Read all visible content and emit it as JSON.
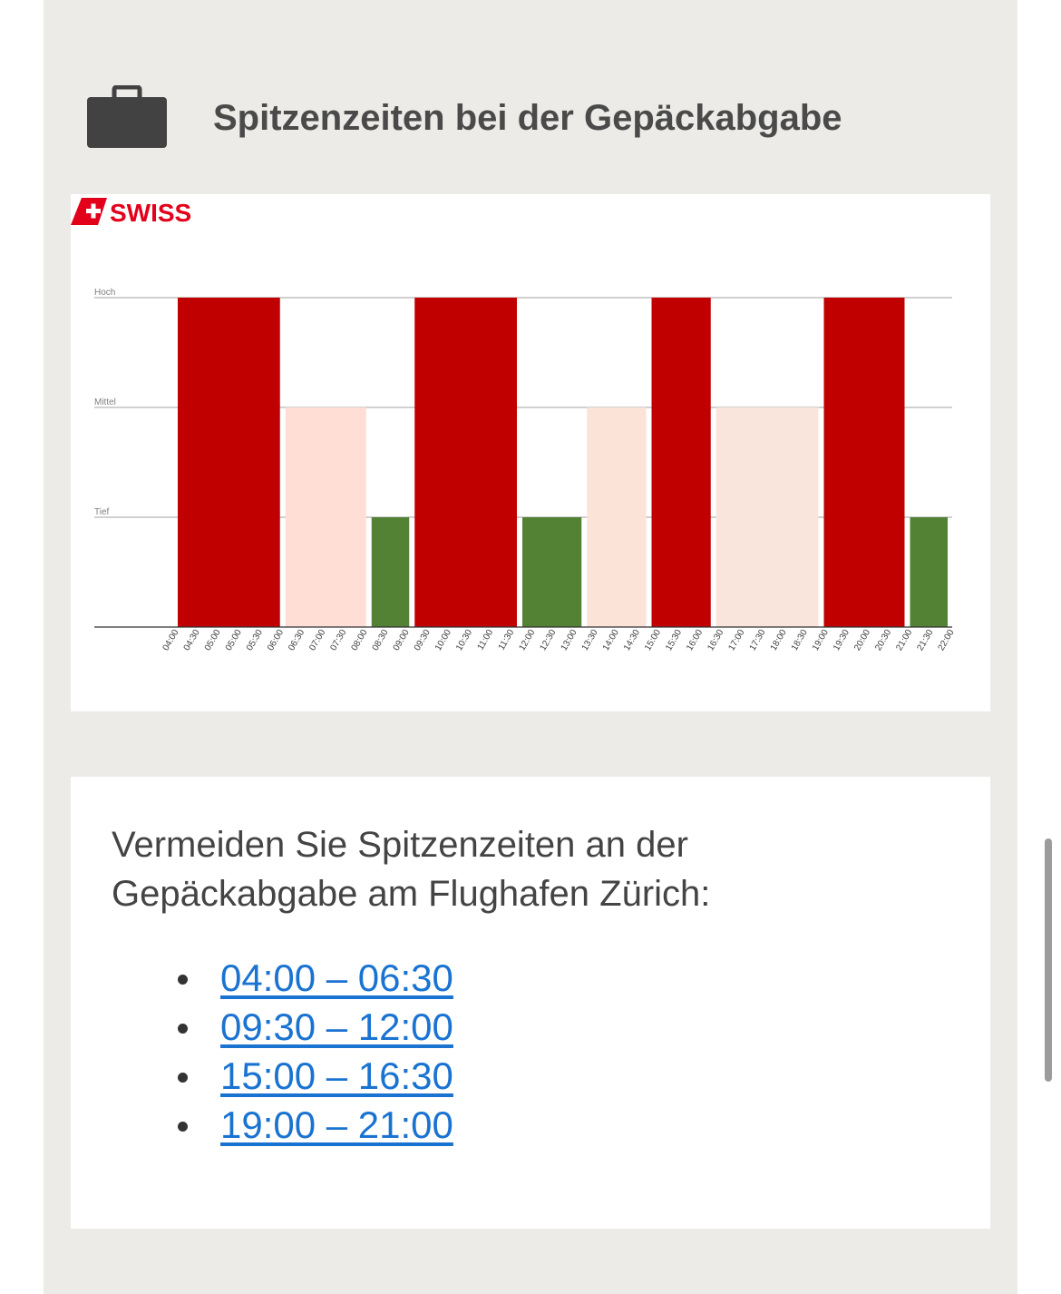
{
  "section": {
    "title": "Spitzenzeiten bei der Gepäckabgabe",
    "icon": "briefcase-icon"
  },
  "chart_data": {
    "type": "bar",
    "title": "",
    "xlabel": "",
    "ylabel": "",
    "y_levels": [
      "Tief",
      "Mittel",
      "Hoch"
    ],
    "ylim": [
      0,
      3
    ],
    "grid": true,
    "x_ticks": [
      "04:00",
      "04:30",
      "05:00",
      "05:00",
      "05:30",
      "06:00",
      "06:30",
      "07:00",
      "07:30",
      "08:00",
      "08:30",
      "09:00",
      "09:30",
      "10:00",
      "10:30",
      "11:00",
      "11:30",
      "12:00",
      "12:30",
      "13:00",
      "13:30",
      "14:00",
      "14:30",
      "15:00",
      "15:30",
      "16:00",
      "16:30",
      "17:00",
      "17:30",
      "18:00",
      "18:30",
      "19:00",
      "19:30",
      "20:00",
      "20:30",
      "21:00",
      "21:30",
      "22:00"
    ],
    "bars": [
      {
        "start": "04:00",
        "end": "06:30",
        "level": "Hoch",
        "value": 3,
        "color": "#c00000"
      },
      {
        "start": "06:30",
        "end": "08:30",
        "level": "Mittel",
        "value": 2,
        "color": "#ffded6"
      },
      {
        "start": "08:30",
        "end": "09:30",
        "level": "Tief",
        "value": 1,
        "color": "#548235"
      },
      {
        "start": "09:30",
        "end": "12:00",
        "level": "Hoch",
        "value": 3,
        "color": "#c00000"
      },
      {
        "start": "12:00",
        "end": "13:30",
        "level": "Tief",
        "value": 1,
        "color": "#548235"
      },
      {
        "start": "13:30",
        "end": "15:00",
        "level": "Mittel",
        "value": 2,
        "color": "#fbe3d8"
      },
      {
        "start": "15:00",
        "end": "16:30",
        "level": "Hoch",
        "value": 3,
        "color": "#c00000"
      },
      {
        "start": "16:30",
        "end": "19:00",
        "level": "Mittel",
        "value": 2,
        "color": "#f9e5db"
      },
      {
        "start": "19:00",
        "end": "21:00",
        "level": "Hoch",
        "value": 3,
        "color": "#c00000"
      },
      {
        "start": "21:00",
        "end": "22:00",
        "level": "Tief",
        "value": 1,
        "color": "#548235"
      }
    ]
  },
  "logo": {
    "text": "SWISS",
    "color": "#e3001b"
  },
  "info": {
    "intro": "Vermeiden Sie Spitzenzeiten an der Gepäckabgabe am Flughafen Zürich:",
    "times": [
      {
        "label": "04:00 – 06:30"
      },
      {
        "label": "09:30 – 12:00"
      },
      {
        "label": "15:00 – 16:30"
      },
      {
        "label": "19:00 – 21:00"
      }
    ]
  },
  "colors": {
    "link": "#1a73d1",
    "background": "#edebe7"
  }
}
